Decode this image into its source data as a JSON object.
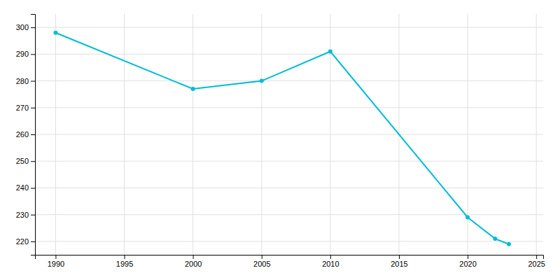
{
  "chart_data": {
    "type": "line",
    "x": [
      1990,
      2000,
      2005,
      2010,
      2020,
      2022,
      2023
    ],
    "values": [
      298,
      277,
      280,
      291,
      229,
      221,
      219
    ],
    "color": "#00BCD4",
    "marker": "circle",
    "xlim": [
      1988.5,
      2025.5
    ],
    "ylim": [
      215,
      305
    ],
    "xticks": [
      1990,
      1995,
      2000,
      2005,
      2010,
      2015,
      2020,
      2025
    ],
    "yticks": [
      220,
      230,
      240,
      250,
      260,
      270,
      280,
      290,
      300
    ],
    "grid": true
  }
}
